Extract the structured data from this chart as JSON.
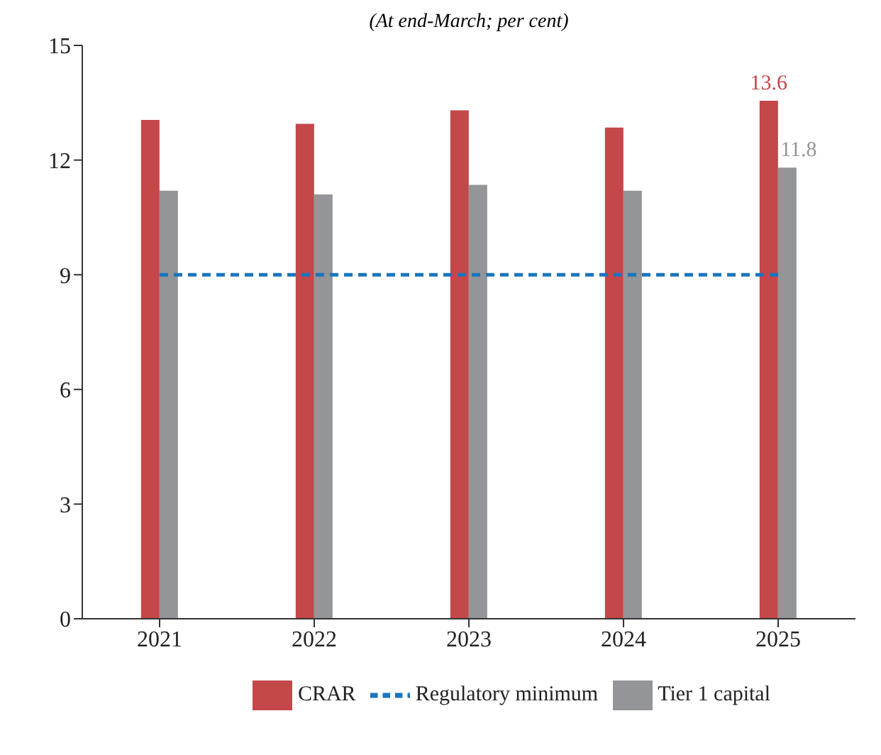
{
  "chart_data": {
    "type": "bar",
    "subtitle": "(At end-March; per cent)",
    "categories": [
      "2021",
      "2022",
      "2023",
      "2024",
      "2025"
    ],
    "series": [
      {
        "name": "CRAR",
        "color": "#c4474a",
        "values": [
          13.05,
          12.95,
          13.3,
          12.85,
          13.55
        ],
        "value_labels": [
          null,
          null,
          null,
          null,
          "13.6"
        ]
      },
      {
        "name": "Tier 1 capital",
        "color": "#939598",
        "values": [
          11.2,
          11.1,
          11.35,
          11.2,
          11.8
        ],
        "value_labels": [
          null,
          null,
          null,
          null,
          "11.8"
        ]
      },
      {
        "name": "Regulatory minimum",
        "type": "line",
        "color": "#1a75bc",
        "line_style": "dashed",
        "marker": "none",
        "values": [
          9,
          9,
          9,
          9,
          9
        ]
      }
    ],
    "ylim": [
      0,
      15
    ],
    "yticks": [
      0,
      3,
      6,
      9,
      12,
      15
    ],
    "grid": false,
    "legend": "bottom"
  }
}
